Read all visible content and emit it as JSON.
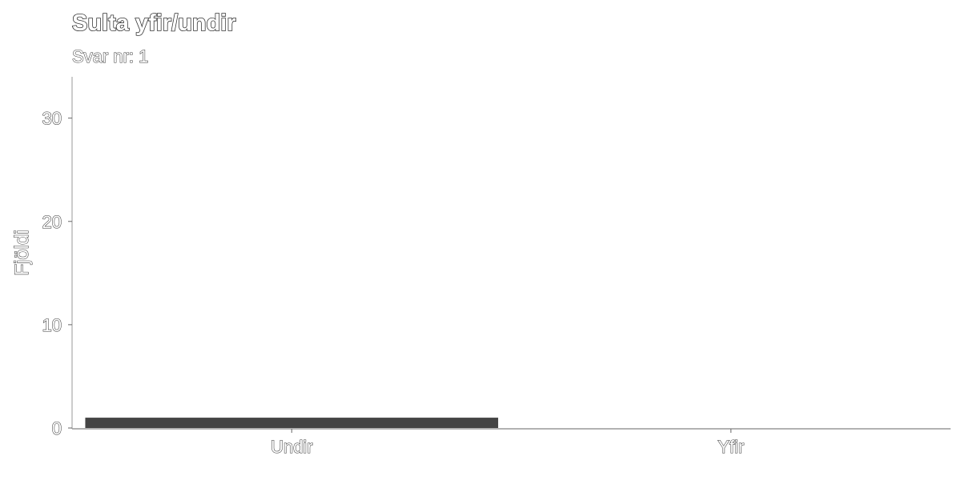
{
  "chart_data": {
    "type": "bar",
    "title": "Sulta yfir/undir",
    "subtitle": "Svar nr: 1",
    "xlabel": "",
    "ylabel": "Fjöldi",
    "categories": [
      "Undir",
      "Yfir"
    ],
    "values": [
      1,
      0
    ],
    "ylim": [
      0,
      34
    ],
    "yticks": [
      0,
      10,
      20,
      30
    ],
    "grid": false,
    "bar_color": "#444444",
    "axis_color": "#999999"
  }
}
